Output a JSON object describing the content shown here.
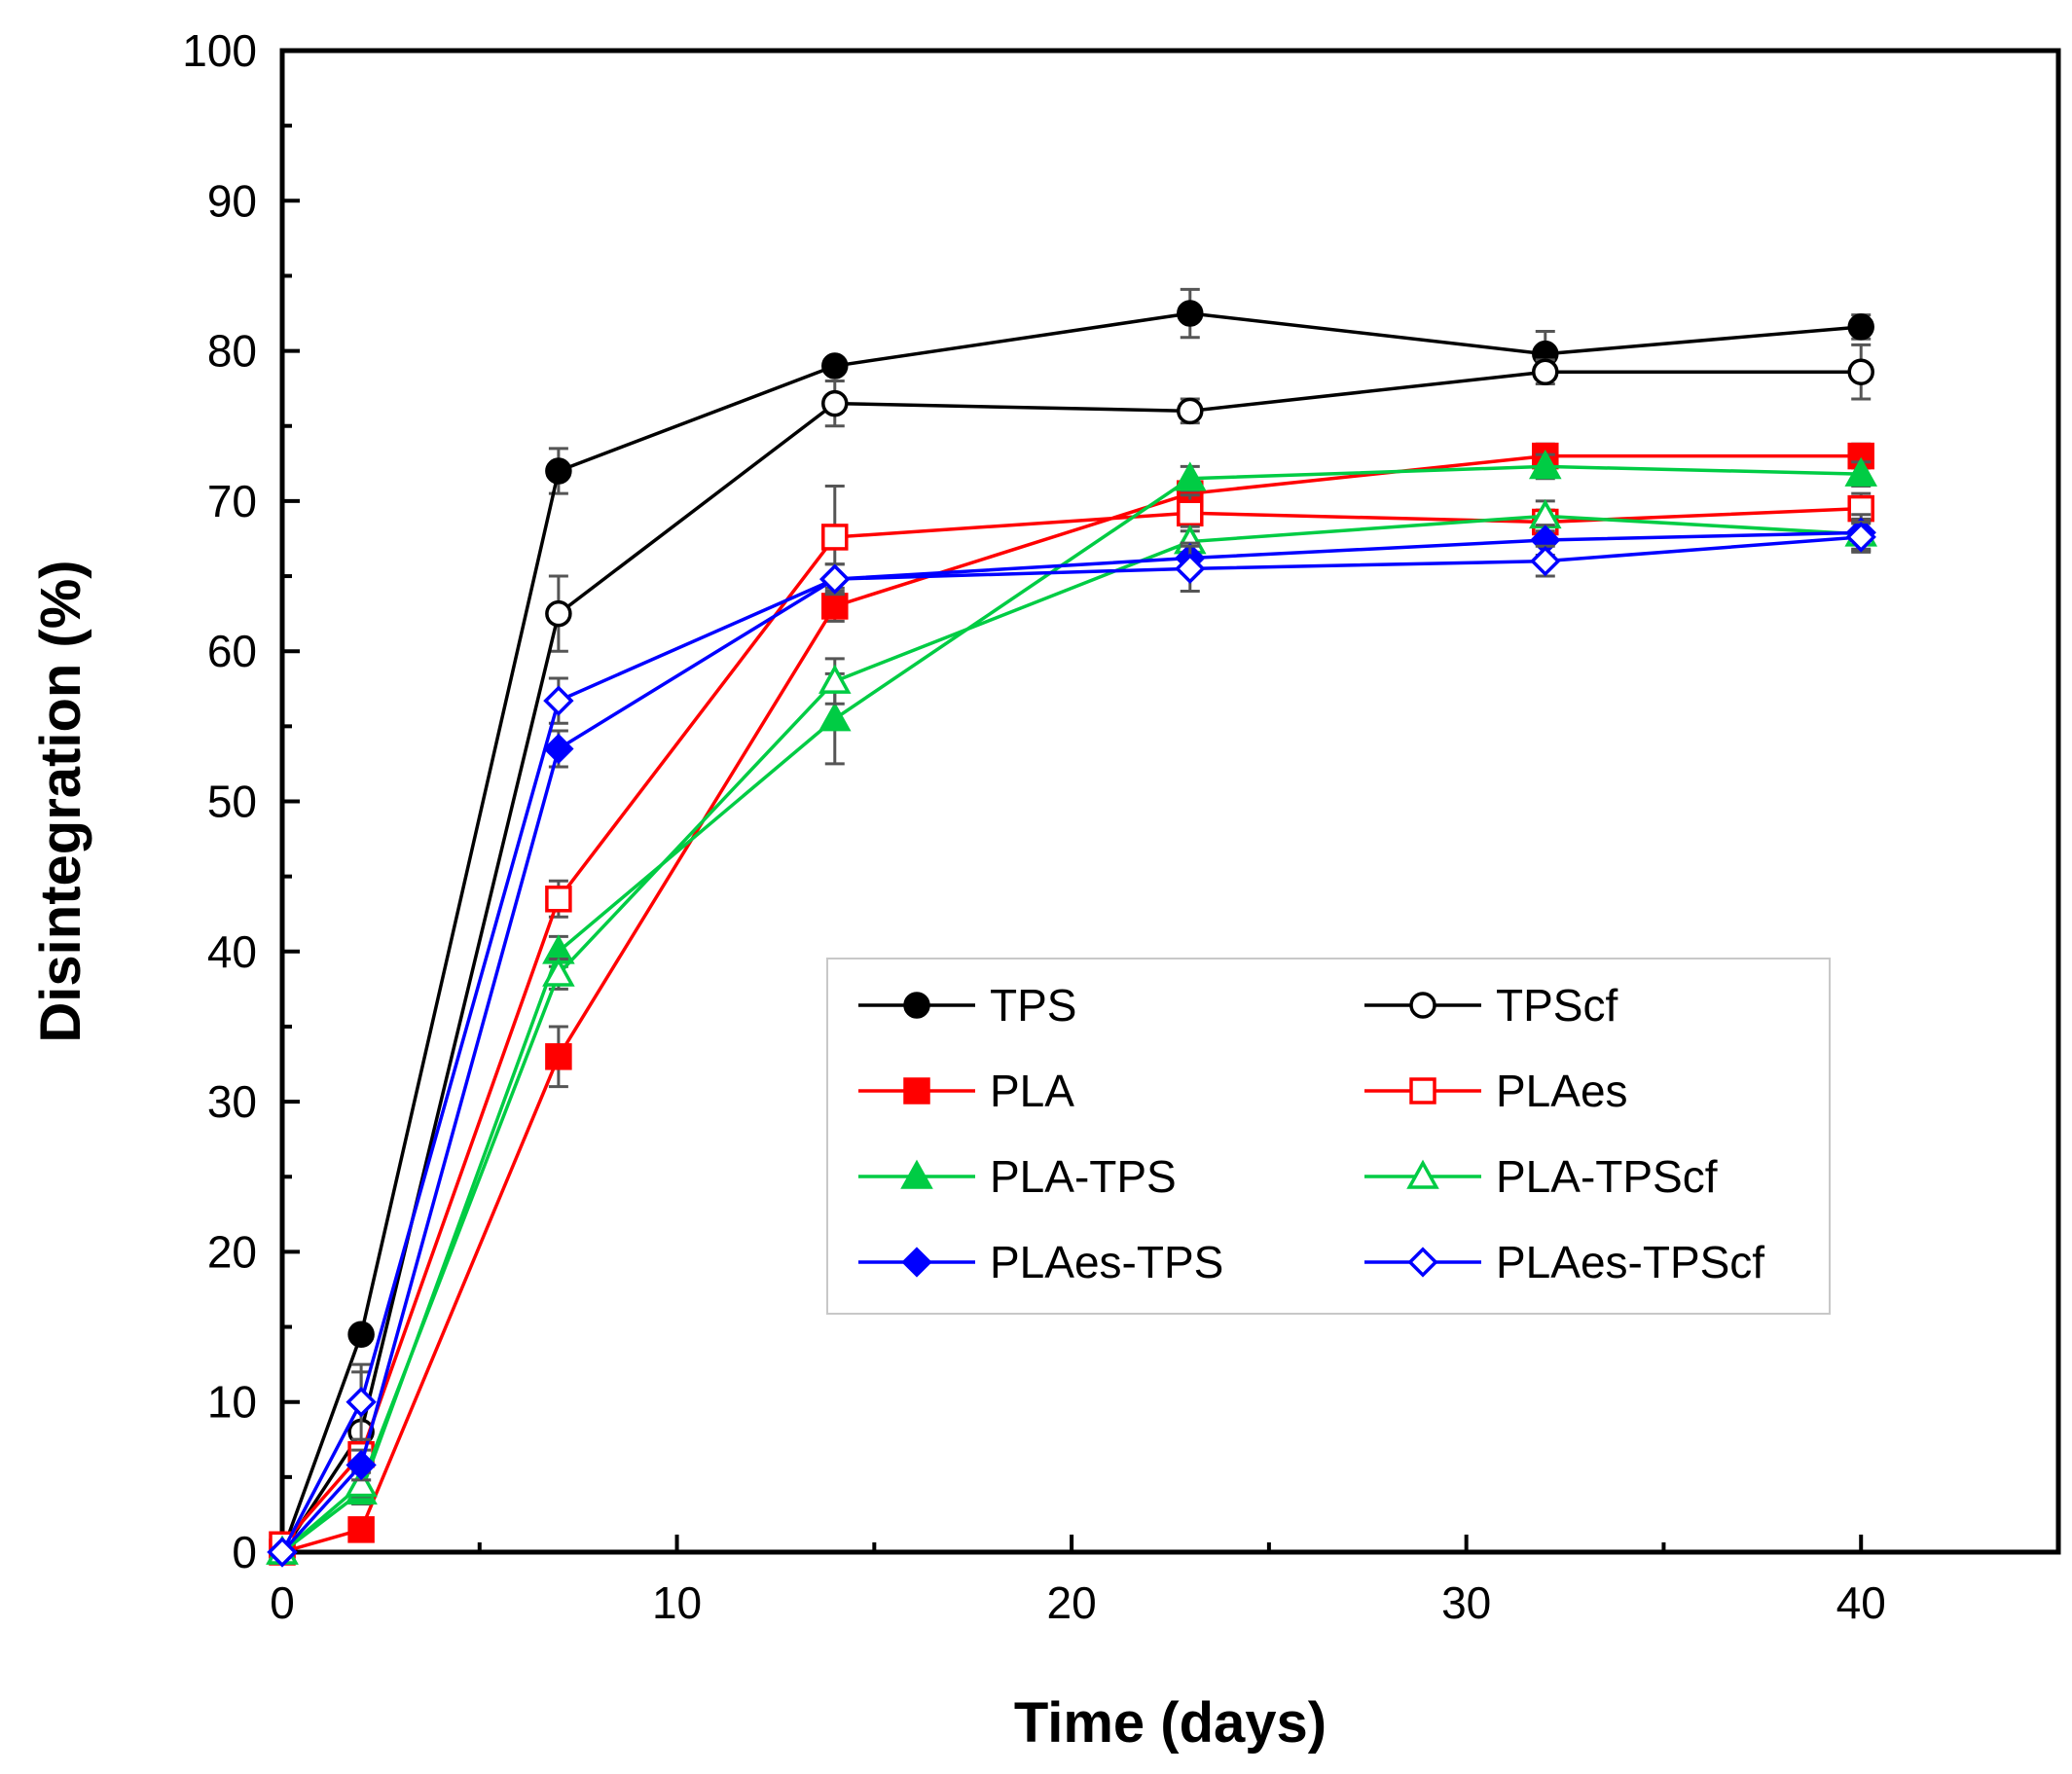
{
  "chart_data": {
    "type": "line",
    "title": "",
    "xlabel": "Time (days)",
    "ylabel": "Disintegration (%)",
    "xlim": [
      0,
      45
    ],
    "ylim": [
      0,
      100
    ],
    "x_major_ticks": [
      0,
      10,
      20,
      30,
      40
    ],
    "y_major_ticks": [
      0,
      10,
      20,
      30,
      40,
      50,
      60,
      70,
      80,
      90,
      100
    ],
    "x_tick_labels": [
      "0",
      "10",
      "20",
      "30",
      "40"
    ],
    "y_tick_labels": [
      "0",
      "10",
      "20",
      "30",
      "40",
      "50",
      "60",
      "70",
      "80",
      "90",
      "100"
    ],
    "grid": false,
    "legend_position": "center-right",
    "x": [
      0,
      2,
      7,
      14,
      23,
      32,
      40
    ],
    "series": [
      {
        "name": "TPS",
        "color": "#000000",
        "marker": "circle",
        "filled": true,
        "values": [
          0,
          14.5,
          72,
          79,
          82.5,
          79.8,
          81.6
        ],
        "errors": [
          0,
          0,
          1.5,
          0.5,
          1.6,
          1.5,
          0.8
        ]
      },
      {
        "name": "TPScf",
        "color": "#000000",
        "marker": "circle",
        "filled": false,
        "values": [
          0,
          8,
          62.5,
          76.5,
          76,
          78.6,
          78.6
        ],
        "errors": [
          0,
          4,
          2.5,
          1.5,
          0.8,
          0.8,
          1.8
        ]
      },
      {
        "name": "PLA",
        "color": "#ff0000",
        "marker": "square",
        "filled": true,
        "values": [
          0,
          1.5,
          33,
          63,
          70.5,
          73,
          73
        ],
        "errors": [
          0,
          0.5,
          2,
          1,
          0.8,
          0.8,
          0.8
        ]
      },
      {
        "name": "PLAes",
        "color": "#ff0000",
        "marker": "square",
        "filled": false,
        "values": [
          0.5,
          6.5,
          43.5,
          67.6,
          69.2,
          68.6,
          69.5
        ],
        "errors": [
          0,
          1,
          1.2,
          3.4,
          1.2,
          0.8,
          1
        ]
      },
      {
        "name": "PLA-TPS",
        "color": "#00cc44",
        "marker": "triangle",
        "filled": true,
        "values": [
          0,
          4,
          40,
          55.5,
          71.5,
          72.3,
          71.8
        ],
        "errors": [
          0,
          0.8,
          1,
          3,
          0.8,
          0.8,
          0.8
        ]
      },
      {
        "name": "PLA-TPScf",
        "color": "#00cc44",
        "marker": "triangle",
        "filled": false,
        "values": [
          0,
          4.5,
          38.5,
          58,
          67.3,
          69,
          67.8
        ],
        "errors": [
          0,
          0.8,
          1,
          1.5,
          1,
          1,
          1
        ]
      },
      {
        "name": "PLAes-TPS",
        "color": "#0000ff",
        "marker": "diamond",
        "filled": true,
        "values": [
          0,
          5.8,
          53.5,
          64.8,
          66.2,
          67.4,
          67.9
        ],
        "errors": [
          0,
          1,
          1.2,
          1,
          1,
          1,
          1.2
        ]
      },
      {
        "name": "PLAes-TPScf",
        "color": "#0000ff",
        "marker": "diamond",
        "filled": false,
        "values": [
          0,
          10,
          56.7,
          64.8,
          65.5,
          66,
          67.6
        ],
        "errors": [
          0,
          2.5,
          1.5,
          1,
          1.5,
          1,
          1
        ]
      }
    ]
  }
}
